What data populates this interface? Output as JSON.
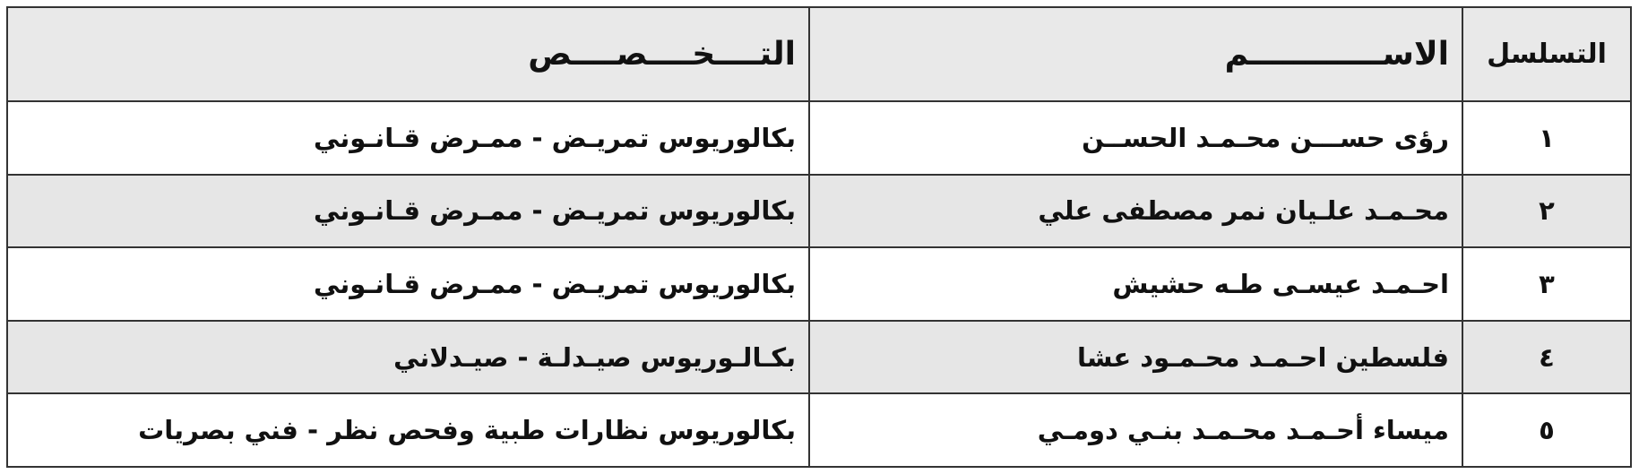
{
  "table": {
    "headers": [
      "التسلسل",
      "الاســــــــــــم",
      "التــــخــــصــــص"
    ],
    "rows": [
      [
        "١",
        "رؤى حســـن محـمـد الحســن",
        "بكالوريوس تمريـض - ممـرض قـانـوني"
      ],
      [
        "٢",
        "محـمـد علـيان نمر مصطفى علي",
        "بكالوريوس تمريـض - ممـرض قـانـوني"
      ],
      [
        "٣",
        "احـمـد عيسـى طـه حشيش",
        "بكالوريوس تمريـض - ممـرض قـانـوني"
      ],
      [
        "٤",
        "فلسطين احـمـد محـمـود عشا",
        "بكـالـوريوس صيـدلـة - صيـدلاني"
      ],
      [
        "٥",
        "ميساء أحـمـد محـمـد بنـي دومـي",
        "بكالوريوس نظارات طبية وفحص نظر - فني بصريات"
      ]
    ]
  }
}
